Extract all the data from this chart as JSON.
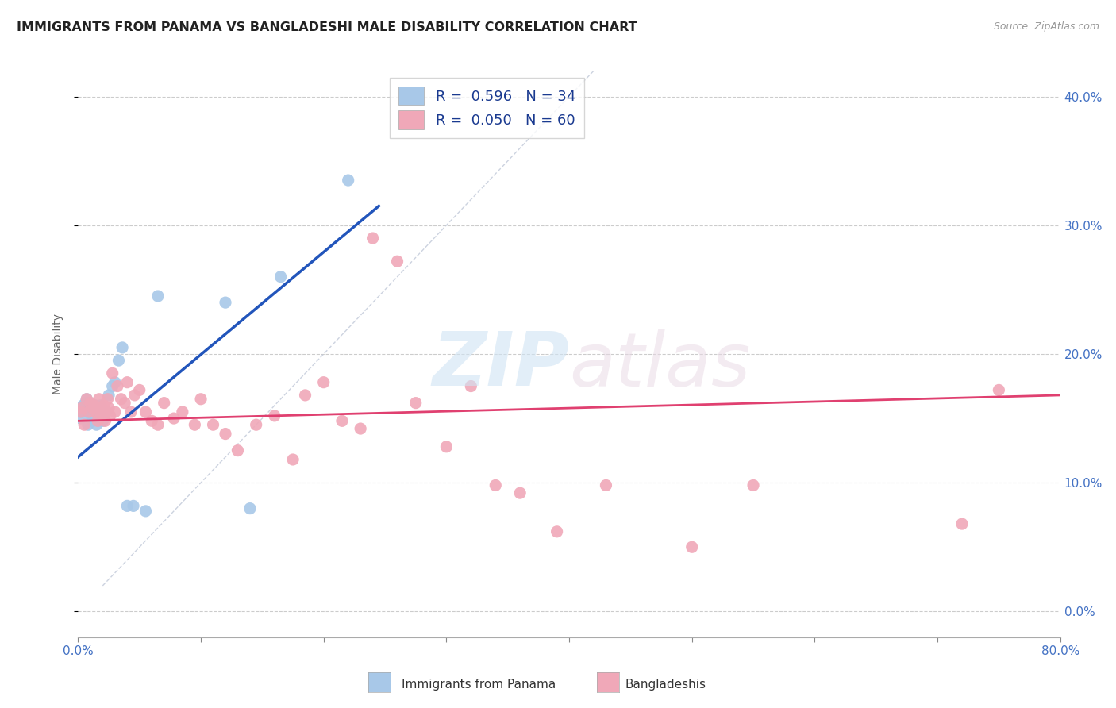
{
  "title": "IMMIGRANTS FROM PANAMA VS BANGLADESHI MALE DISABILITY CORRELATION CHART",
  "source": "Source: ZipAtlas.com",
  "ylabel": "Male Disability",
  "blue_label": "Immigrants from Panama",
  "pink_label": "Bangladeshis",
  "blue_color": "#a8c8e8",
  "pink_color": "#f0a8b8",
  "blue_line_color": "#2255bb",
  "pink_line_color": "#e04070",
  "dashed_line_color": "#c0c8d8",
  "xlim": [
    0.0,
    0.8
  ],
  "ylim": [
    -0.02,
    0.42
  ],
  "right_yticks": [
    0.0,
    0.1,
    0.2,
    0.3,
    0.4
  ],
  "right_ytick_labels": [
    "0.0%",
    "10.0%",
    "20.0%",
    "30.0%",
    "40.0%"
  ],
  "legend_blue_r": "0.596",
  "legend_blue_n": "34",
  "legend_pink_r": "0.050",
  "legend_pink_n": "60",
  "blue_scatter_x": [
    0.002,
    0.003,
    0.004,
    0.005,
    0.006,
    0.007,
    0.008,
    0.009,
    0.01,
    0.011,
    0.012,
    0.013,
    0.014,
    0.015,
    0.016,
    0.017,
    0.018,
    0.019,
    0.02,
    0.021,
    0.023,
    0.025,
    0.028,
    0.03,
    0.033,
    0.036,
    0.04,
    0.045,
    0.055,
    0.065,
    0.12,
    0.14,
    0.165,
    0.22
  ],
  "blue_scatter_y": [
    0.15,
    0.155,
    0.16,
    0.158,
    0.162,
    0.165,
    0.145,
    0.155,
    0.158,
    0.152,
    0.148,
    0.155,
    0.16,
    0.145,
    0.15,
    0.155,
    0.16,
    0.158,
    0.148,
    0.152,
    0.155,
    0.168,
    0.175,
    0.178,
    0.195,
    0.205,
    0.082,
    0.082,
    0.078,
    0.245,
    0.24,
    0.08,
    0.26,
    0.335
  ],
  "pink_scatter_x": [
    0.002,
    0.003,
    0.005,
    0.007,
    0.009,
    0.01,
    0.012,
    0.013,
    0.015,
    0.016,
    0.017,
    0.018,
    0.019,
    0.02,
    0.021,
    0.022,
    0.023,
    0.024,
    0.025,
    0.026,
    0.028,
    0.03,
    0.032,
    0.035,
    0.038,
    0.04,
    0.043,
    0.046,
    0.05,
    0.055,
    0.06,
    0.065,
    0.07,
    0.078,
    0.085,
    0.095,
    0.1,
    0.11,
    0.12,
    0.13,
    0.145,
    0.16,
    0.175,
    0.185,
    0.2,
    0.215,
    0.23,
    0.24,
    0.26,
    0.275,
    0.3,
    0.32,
    0.34,
    0.36,
    0.39,
    0.43,
    0.5,
    0.55,
    0.72,
    0.75
  ],
  "pink_scatter_y": [
    0.155,
    0.158,
    0.145,
    0.165,
    0.155,
    0.162,
    0.158,
    0.16,
    0.155,
    0.148,
    0.165,
    0.155,
    0.158,
    0.152,
    0.16,
    0.148,
    0.155,
    0.165,
    0.158,
    0.152,
    0.185,
    0.155,
    0.175,
    0.165,
    0.162,
    0.178,
    0.155,
    0.168,
    0.172,
    0.155,
    0.148,
    0.145,
    0.162,
    0.15,
    0.155,
    0.145,
    0.165,
    0.145,
    0.138,
    0.125,
    0.145,
    0.152,
    0.118,
    0.168,
    0.178,
    0.148,
    0.142,
    0.29,
    0.272,
    0.162,
    0.128,
    0.175,
    0.098,
    0.092,
    0.062,
    0.098,
    0.05,
    0.098,
    0.068,
    0.172
  ],
  "blue_line_x": [
    0.0,
    0.245
  ],
  "blue_line_y": [
    0.12,
    0.315
  ],
  "pink_line_x": [
    0.0,
    0.8
  ],
  "pink_line_y": [
    0.148,
    0.168
  ],
  "dashed_line_x": [
    0.02,
    0.42
  ],
  "dashed_line_y": [
    0.02,
    0.42
  ]
}
